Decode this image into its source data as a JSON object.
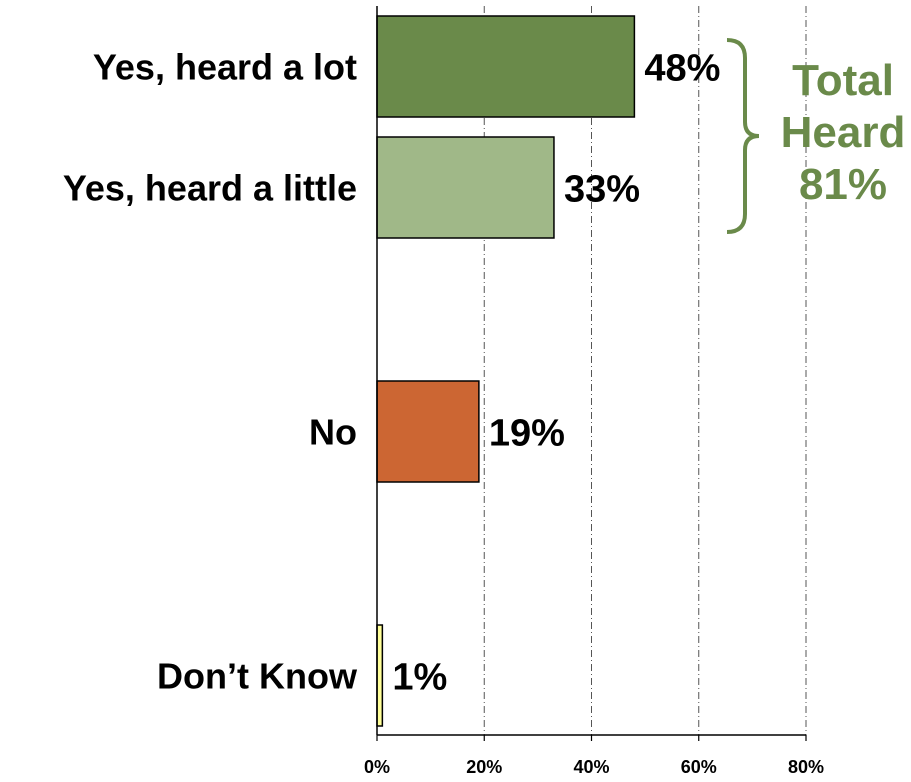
{
  "chart_data": {
    "type": "bar",
    "orientation": "horizontal",
    "categories": [
      "Yes, heard a lot",
      "Yes, heard a little",
      "No",
      "Don’t Know"
    ],
    "values": [
      48,
      33,
      19,
      1
    ],
    "value_labels": [
      "48%",
      "33%",
      "19%",
      "1%"
    ],
    "colors": [
      "#6a8a4a",
      "#a0b888",
      "#cc6633",
      "#ffff99"
    ],
    "xlim": [
      0,
      80
    ],
    "xticks": [
      0,
      20,
      40,
      60,
      80
    ],
    "xtick_labels": [
      "0%",
      "20%",
      "40%",
      "60%",
      "80%"
    ],
    "grid": "vertical dash-dot",
    "annotation": {
      "lines": [
        "Total",
        "Heard",
        "81%"
      ],
      "color": "#6a8a4a",
      "brackets": [
        "Yes, heard a lot",
        "Yes, heard a little"
      ],
      "value": 81
    }
  }
}
